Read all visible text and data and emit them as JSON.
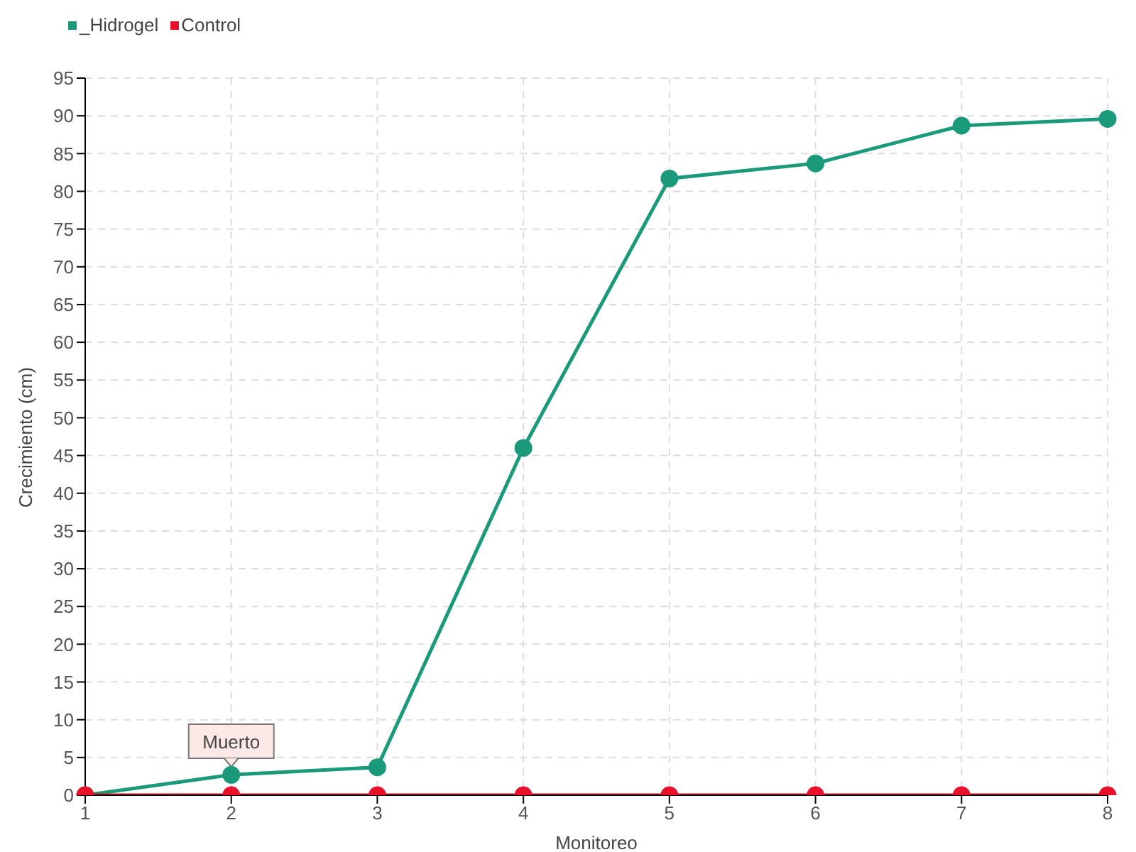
{
  "chart_data": {
    "type": "line",
    "xlabel": "Monitoreo",
    "ylabel": "Crecimiento (cm)",
    "categories": [
      "1",
      "2",
      "3",
      "4",
      "5",
      "6",
      "7",
      "8"
    ],
    "series": [
      {
        "name": "_Hidrogel",
        "color": "#1a9a7a",
        "values": [
          0,
          2.7,
          3.7,
          46,
          81.7,
          83.7,
          88.7,
          89.6
        ]
      },
      {
        "name": "Control",
        "color": "#e8102a",
        "values": [
          0,
          0,
          0,
          0,
          0,
          0,
          0,
          0
        ]
      }
    ],
    "ylim": [
      0,
      95
    ],
    "yticks": [
      0,
      5,
      10,
      15,
      20,
      25,
      30,
      35,
      40,
      45,
      50,
      55,
      60,
      65,
      70,
      75,
      80,
      85,
      90,
      95
    ],
    "grid": true,
    "legend": "top left",
    "marker": "circle",
    "line_style": "solid",
    "annotations": [
      {
        "text": "Muerto",
        "x": "2",
        "y": 0
      }
    ]
  }
}
